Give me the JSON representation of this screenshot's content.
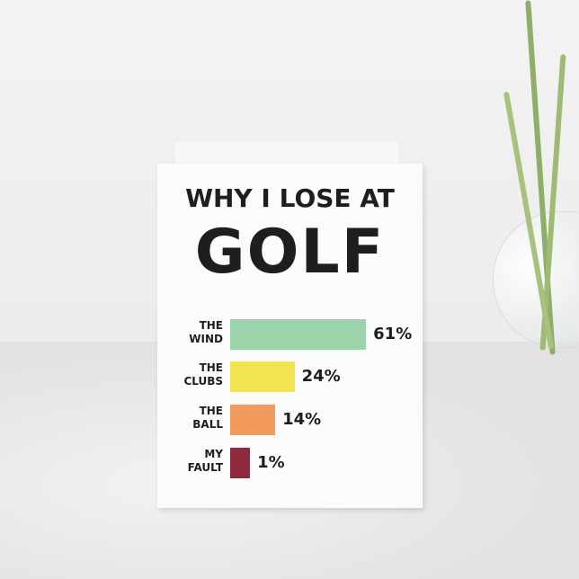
{
  "card": {
    "title_line1": "WHY I LOSE AT",
    "title_line2": "GOLF"
  },
  "chart_data": {
    "type": "bar",
    "orientation": "horizontal",
    "categories": [
      "THE WIND",
      "THE CLUBS",
      "THE BALL",
      "MY FAULT"
    ],
    "labels": [
      [
        "THE",
        "WIND"
      ],
      [
        "THE",
        "CLUBS"
      ],
      [
        "THE",
        "BALL"
      ],
      [
        "MY",
        "FAULT"
      ]
    ],
    "values": [
      61,
      24,
      14,
      1
    ],
    "value_labels": [
      "61%",
      "24%",
      "14%",
      "1%"
    ],
    "colors": [
      "#9dd3aa",
      "#f2e34f",
      "#f39b5b",
      "#8e2a3c"
    ],
    "title": "WHY I LOSE AT GOLF",
    "grid": false
  }
}
